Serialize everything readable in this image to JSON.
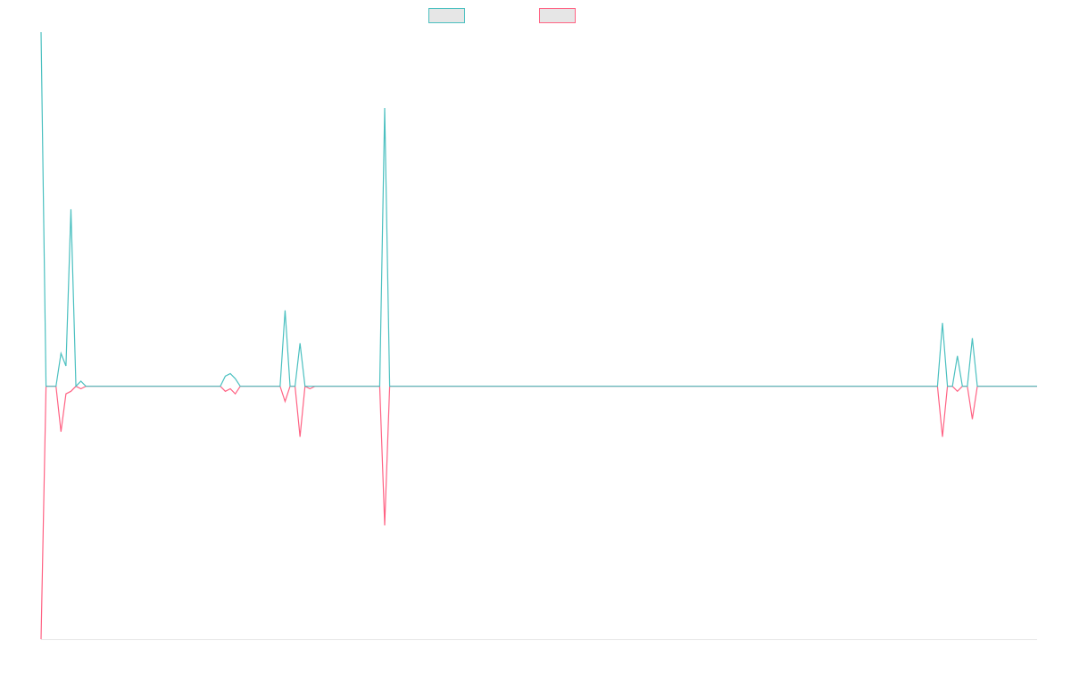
{
  "chart_data": {
    "type": "line",
    "title": "",
    "xlabel": "",
    "ylabel": "",
    "grid": false,
    "legend_position": "top-center",
    "x_count": 201,
    "ylim": [
      -1.0,
      1.4
    ],
    "series": [
      {
        "name": "",
        "color": "#4bc0c0",
        "fill": "#e6e6e6",
        "points": [
          [
            0,
            1.4
          ],
          [
            1,
            0
          ],
          [
            2,
            0
          ],
          [
            3,
            0
          ],
          [
            4,
            0.13
          ],
          [
            5,
            0.08
          ],
          [
            6,
            0.7
          ],
          [
            7,
            0
          ],
          [
            8,
            0.02
          ],
          [
            9,
            0
          ],
          [
            10,
            0
          ],
          [
            36,
            0
          ],
          [
            37,
            0.04
          ],
          [
            38,
            0.05
          ],
          [
            39,
            0.03
          ],
          [
            40,
            0
          ],
          [
            48,
            0
          ],
          [
            49,
            0.3
          ],
          [
            50,
            0
          ],
          [
            51,
            0
          ],
          [
            52,
            0.17
          ],
          [
            53,
            0
          ],
          [
            54,
            0
          ],
          [
            55,
            0
          ],
          [
            68,
            0
          ],
          [
            69,
            1.1
          ],
          [
            70,
            0
          ],
          [
            180,
            0
          ],
          [
            181,
            0.25
          ],
          [
            182,
            0
          ],
          [
            183,
            0
          ],
          [
            184,
            0.12
          ],
          [
            185,
            0
          ],
          [
            186,
            0
          ],
          [
            187,
            0.19
          ],
          [
            188,
            0
          ],
          [
            200,
            0
          ]
        ]
      },
      {
        "name": "",
        "color": "#ff6384",
        "fill": "#e6e6e6",
        "points": [
          [
            0,
            -1.0
          ],
          [
            1,
            0
          ],
          [
            2,
            0
          ],
          [
            3,
            0
          ],
          [
            4,
            -0.18
          ],
          [
            5,
            -0.03
          ],
          [
            6,
            -0.02
          ],
          [
            7,
            0
          ],
          [
            8,
            -0.01
          ],
          [
            9,
            0
          ],
          [
            10,
            0
          ],
          [
            36,
            0
          ],
          [
            37,
            -0.02
          ],
          [
            38,
            -0.01
          ],
          [
            39,
            -0.03
          ],
          [
            40,
            0
          ],
          [
            48,
            0
          ],
          [
            49,
            -0.06
          ],
          [
            50,
            0
          ],
          [
            51,
            0
          ],
          [
            52,
            -0.2
          ],
          [
            53,
            0
          ],
          [
            54,
            -0.01
          ],
          [
            55,
            0
          ],
          [
            68,
            0
          ],
          [
            69,
            -0.55
          ],
          [
            70,
            0
          ],
          [
            180,
            0
          ],
          [
            181,
            -0.2
          ],
          [
            182,
            0
          ],
          [
            183,
            0
          ],
          [
            184,
            -0.02
          ],
          [
            185,
            0
          ],
          [
            186,
            0
          ],
          [
            187,
            -0.13
          ],
          [
            188,
            0
          ],
          [
            200,
            0
          ]
        ]
      }
    ]
  }
}
